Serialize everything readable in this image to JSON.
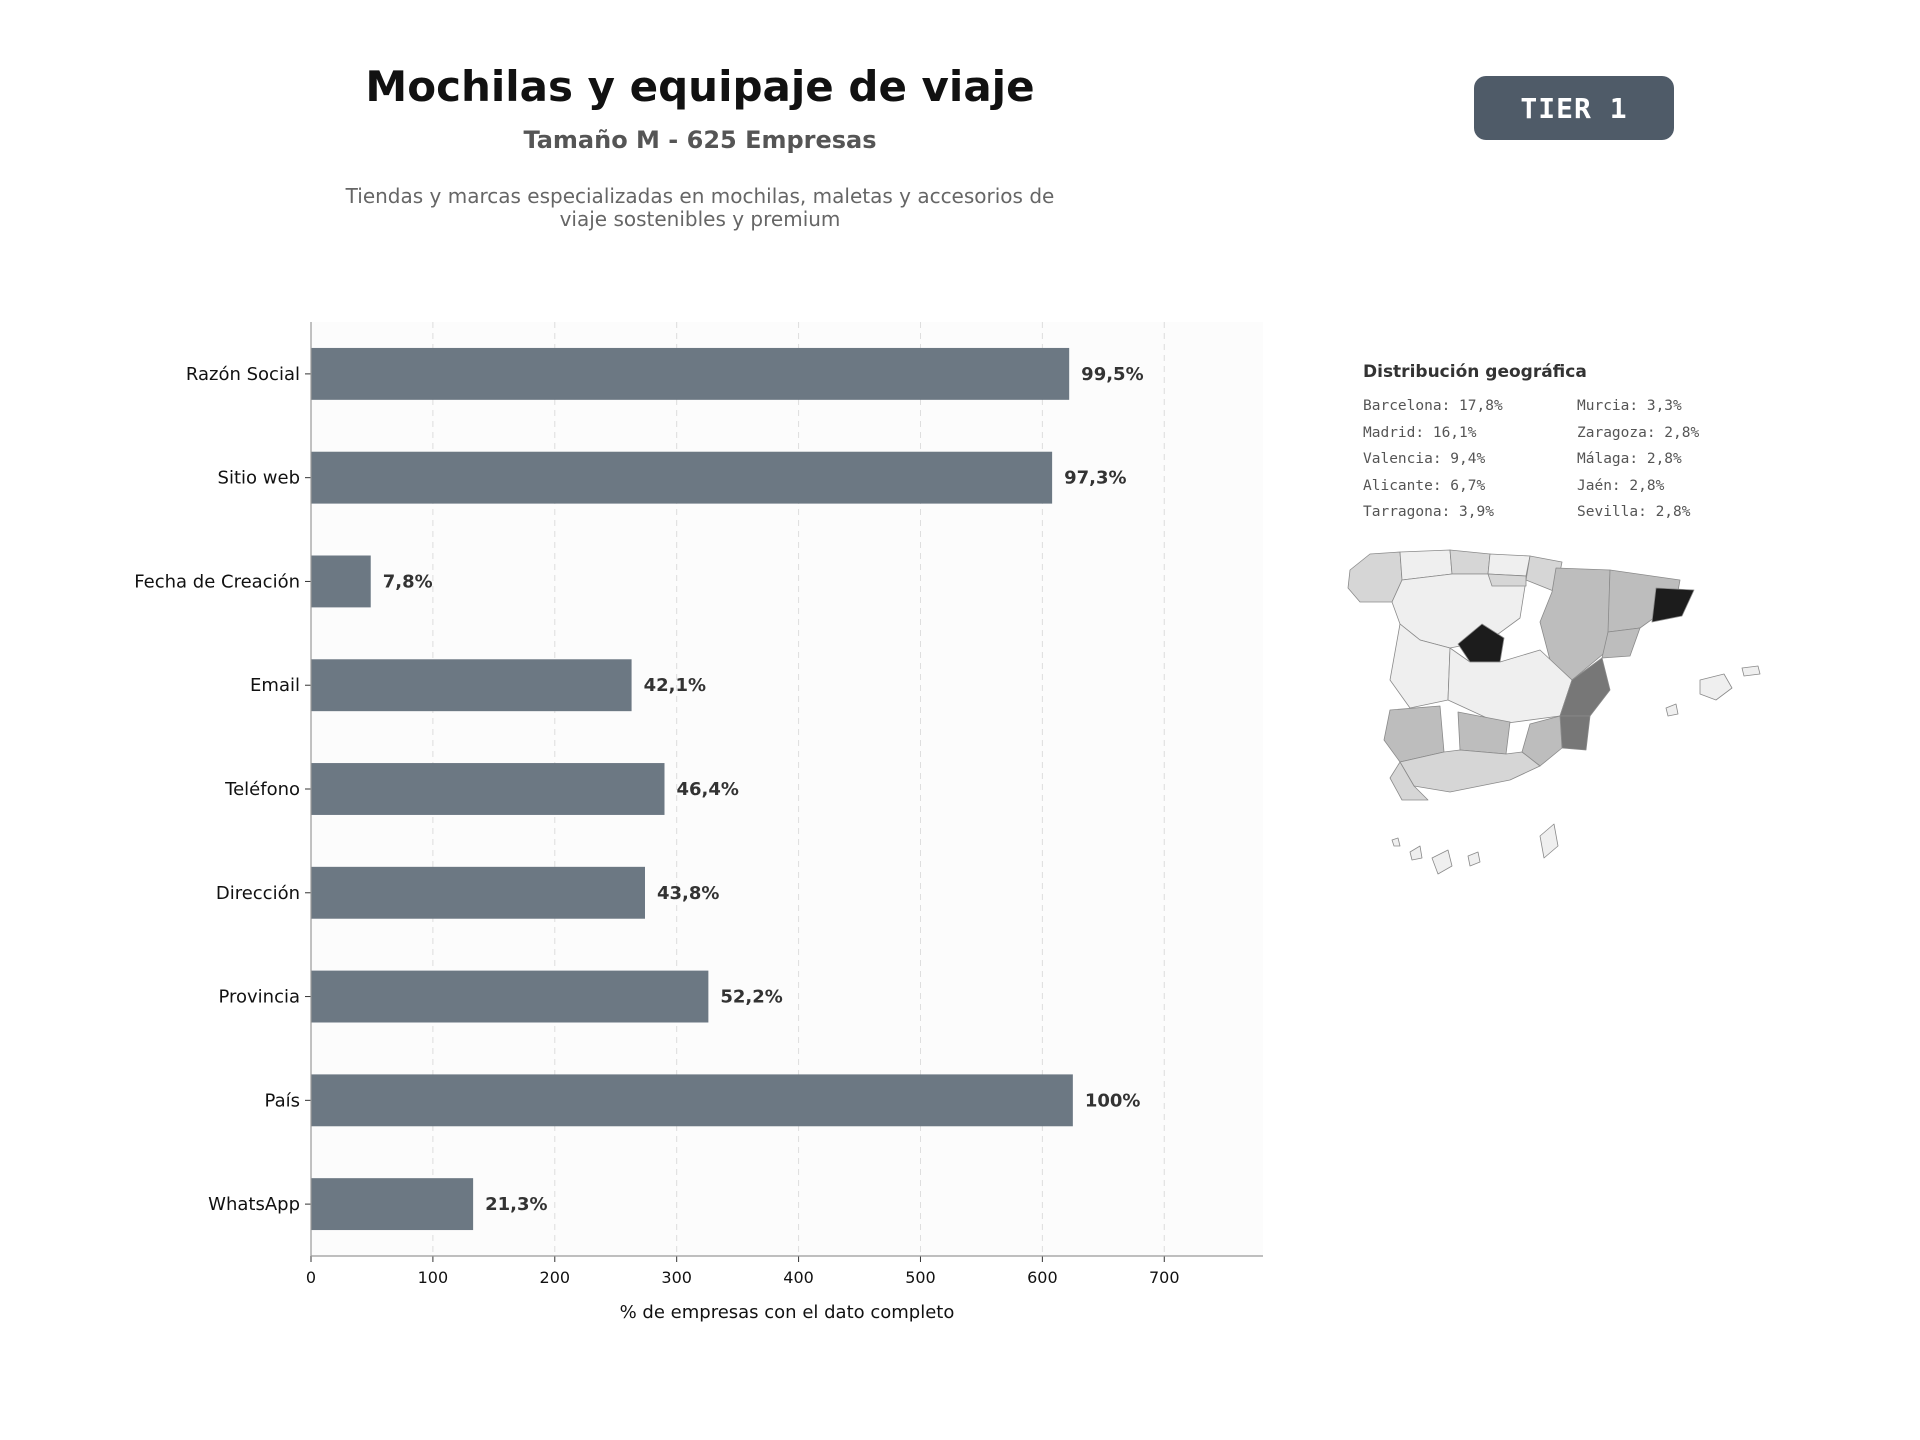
{
  "header": {
    "title": "Mochilas y equipaje de viaje",
    "subtitle": "Tamaño M - 625 Empresas",
    "description_line1": "Tiendas y marcas especializadas en mochilas, maletas y accesorios de",
    "description_line2": "viaje sostenibles y premium"
  },
  "badge": {
    "label": "TIER 1",
    "color": "#4f5b68"
  },
  "chart_data": {
    "type": "bar",
    "orientation": "horizontal",
    "categories": [
      "Razón Social",
      "Sitio web",
      "Fecha de Creación",
      "Email",
      "Teléfono",
      "Dirección",
      "Provincia",
      "País",
      "WhatsApp"
    ],
    "values": [
      622,
      608,
      49,
      263,
      290,
      274,
      326,
      625,
      133
    ],
    "value_labels": [
      "99,5%",
      "97,3%",
      "7,8%",
      "42,1%",
      "46,4%",
      "43,8%",
      "52,2%",
      "100%",
      "21,3%"
    ],
    "xlabel": "% de empresas con el dato completo",
    "xticks": [
      0,
      100,
      200,
      300,
      400,
      500,
      600,
      700
    ],
    "xlim": [
      0,
      781
    ],
    "grid": "vertical dashed",
    "bar_color": "#6c7883",
    "background": "#fcfcfc"
  },
  "geo": {
    "title": "Distribución geográfica",
    "left_column": [
      "Barcelona: 17,8%",
      "Madrid: 16,1%",
      "Valencia: 9,4%",
      "Alicante: 6,7%",
      "Tarragona: 3,9%"
    ],
    "right_column": [
      "Murcia: 3,3%",
      "Zaragoza: 2,8%",
      "Málaga: 2,8%",
      "Jaén: 2,8%",
      "Sevilla: 2,8%"
    ],
    "map_colors": {
      "highest": "#1c1c1c",
      "high": "#777777",
      "medium": "#bdbdbd",
      "low": "#d6d6d6",
      "lowest": "#efefef"
    }
  }
}
